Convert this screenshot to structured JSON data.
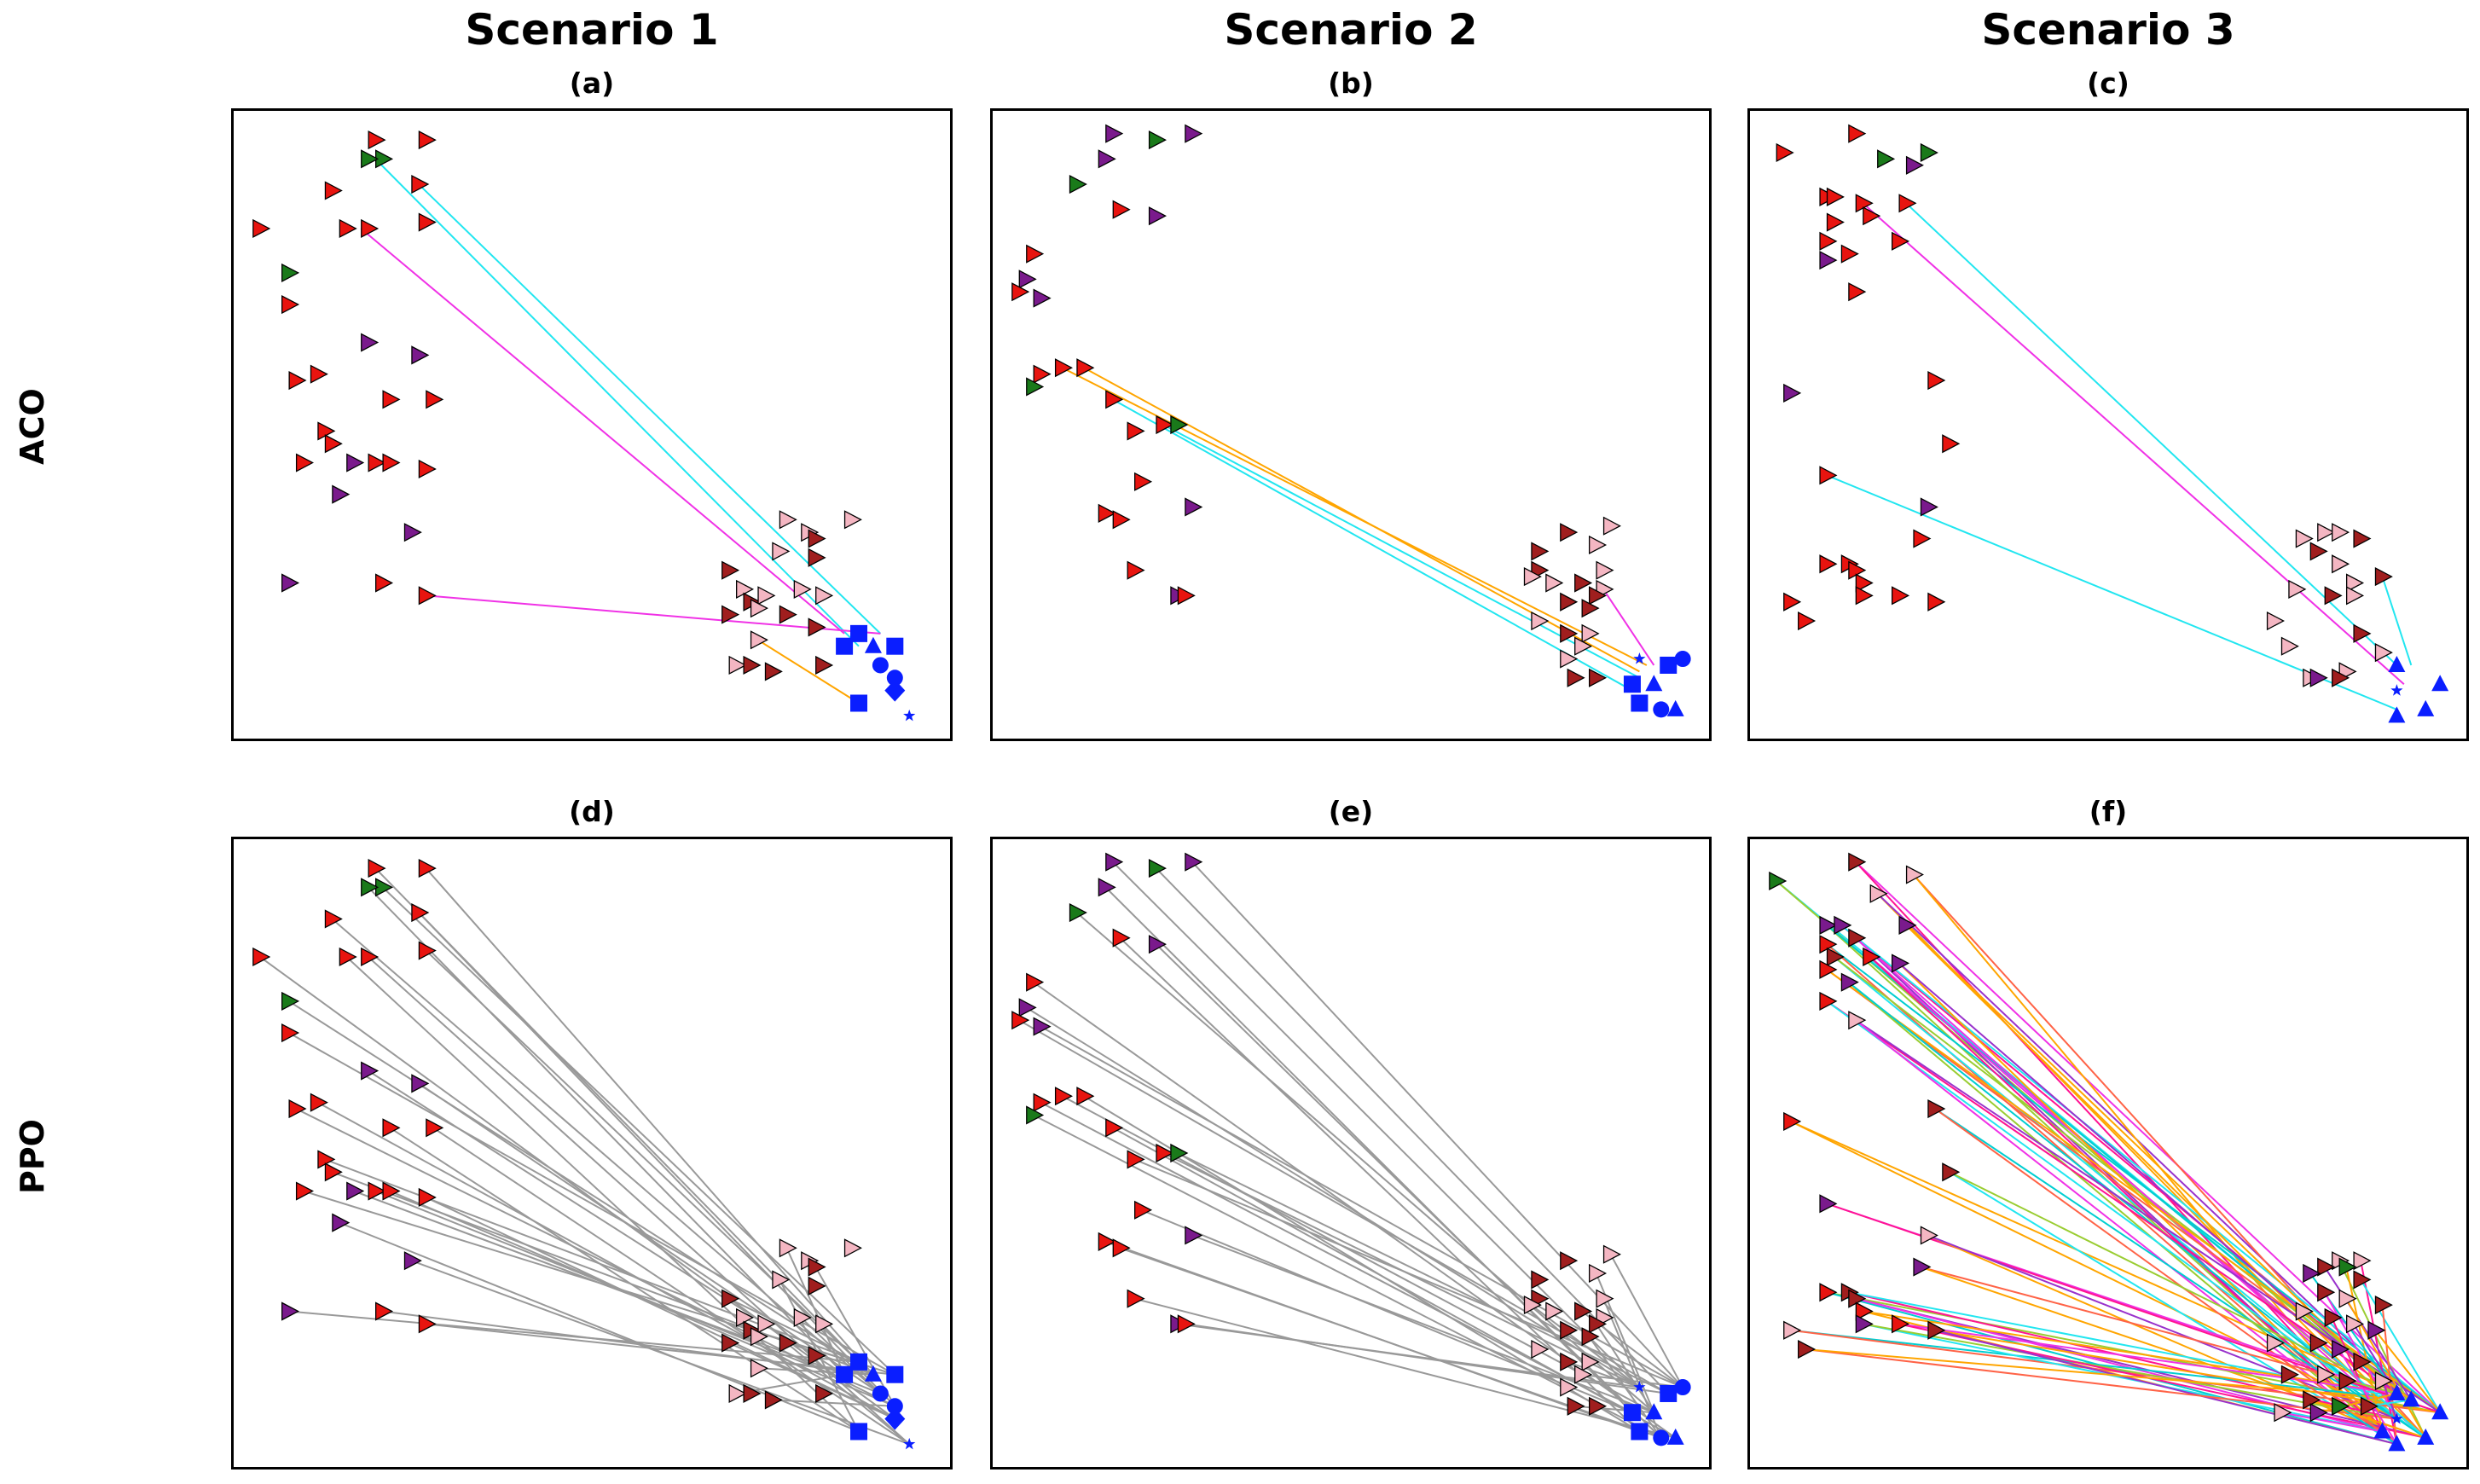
{
  "columns": [
    "Scenario 1",
    "Scenario 2",
    "Scenario 3"
  ],
  "rows": [
    "ACO",
    "PPO"
  ],
  "panel_labels": [
    "(a)",
    "(b)",
    "(c)",
    "(d)",
    "(e)",
    "(f)"
  ],
  "colors": {
    "target_red": "#e8140f",
    "target_darkred": "#a01e1e",
    "target_pink": "#f4b6c2",
    "target_purple": "#7a1a8c",
    "target_green": "#1a7a1a",
    "unit_blue": "#0a1eff",
    "path_cyan": "#22e6f0",
    "path_magenta": "#f032e6",
    "path_orange": "#ffa500",
    "path_gray": "#999999"
  },
  "chart_data": [
    {
      "panel": "(a)",
      "type": "scatter",
      "row": "ACO",
      "column": "Scenario 1",
      "paths": 3,
      "xlim": [
        0,
        100
      ],
      "ylim": [
        0,
        100
      ]
    },
    {
      "panel": "(b)",
      "type": "scatter",
      "row": "ACO",
      "column": "Scenario 2",
      "paths": 4,
      "xlim": [
        0,
        100
      ],
      "ylim": [
        0,
        100
      ]
    },
    {
      "panel": "(c)",
      "type": "scatter",
      "row": "ACO",
      "column": "Scenario 3",
      "paths": 3,
      "xlim": [
        0,
        100
      ],
      "ylim": [
        0,
        100
      ]
    },
    {
      "panel": "(d)",
      "type": "scatter",
      "row": "PPO",
      "column": "Scenario 1",
      "paths": "many",
      "xlim": [
        0,
        100
      ],
      "ylim": [
        0,
        100
      ]
    },
    {
      "panel": "(e)",
      "type": "scatter",
      "row": "PPO",
      "column": "Scenario 2",
      "paths": "many",
      "xlim": [
        0,
        100
      ],
      "ylim": [
        0,
        100
      ]
    },
    {
      "panel": "(f)",
      "type": "scatter",
      "row": "PPO",
      "column": "Scenario 3",
      "paths": "many",
      "xlim": [
        0,
        100
      ],
      "ylim": [
        0,
        100
      ]
    }
  ]
}
